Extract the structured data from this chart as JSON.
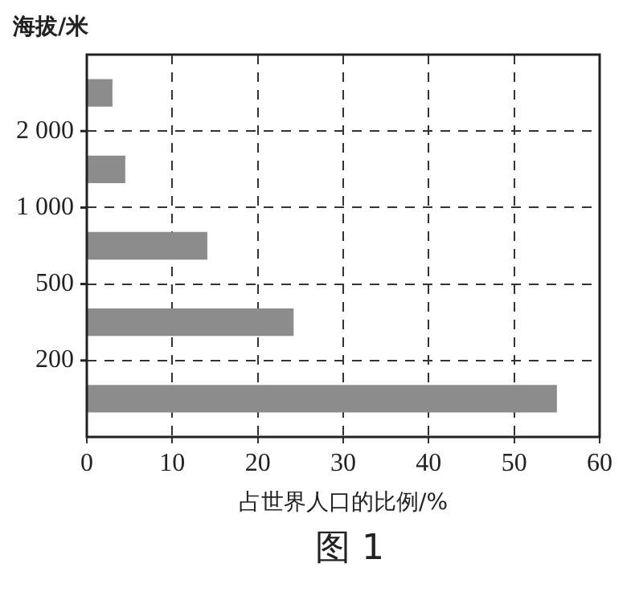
{
  "chart_data": {
    "type": "bar",
    "orientation": "horizontal",
    "ylabel": "海拔/米",
    "xlabel": "占世界人口的比例/%",
    "categories": [
      null,
      null,
      null,
      null,
      null
    ],
    "values": [
      3,
      4.5,
      14.1,
      24.2,
      55
    ],
    "color": "#8c8c8c",
    "xlim": [
      0,
      60
    ],
    "xticks": [
      0,
      10,
      20,
      30,
      40,
      50,
      60
    ],
    "grid": true,
    "annotations": [
      "2 000",
      "1 000",
      "500",
      "200",
      "图 1"
    ]
  }
}
